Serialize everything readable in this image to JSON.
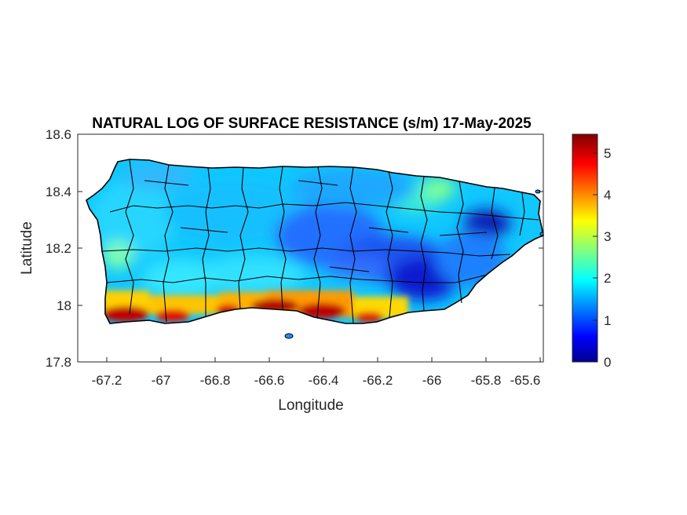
{
  "figure": {
    "title": "NATURAL LOG OF SURFACE RESISTANCE (s/m) 17-May-2025",
    "xlabel": "Longitude",
    "ylabel": "Latitude",
    "xticks": [
      "-67.2",
      "-67",
      "-66.8",
      "-66.6",
      "-66.4",
      "-66.2",
      "-66",
      "-65.8",
      "-65.6"
    ],
    "yticks": [
      "18.6",
      "18.4",
      "18.2",
      "18",
      "17.8"
    ],
    "colorbar_ticks": [
      "5",
      "4",
      "3",
      "2",
      "1",
      "0"
    ]
  },
  "chart_data": {
    "type": "heatmap",
    "region": "Puerto Rico",
    "variable": "natural log of surface resistance",
    "units": "s/m",
    "date": "17-May-2025",
    "xlim": [
      -67.3,
      -65.6
    ],
    "ylim": [
      17.8,
      18.6
    ],
    "xticks": [
      -67.2,
      -67.0,
      -66.8,
      -66.6,
      -66.4,
      -66.2,
      -66.0,
      -65.8,
      -65.6
    ],
    "yticks": [
      17.8,
      18.0,
      18.2,
      18.4,
      18.6
    ],
    "clim": [
      0,
      5.4
    ],
    "colorbar_ticks": [
      0,
      1,
      2,
      3,
      4,
      5
    ],
    "colormap": "jet",
    "typical_value": 2.0,
    "features": [
      {
        "name": "southern coast high resistance",
        "value_range": [
          4,
          5.4
        ]
      },
      {
        "name": "east-central interior low",
        "value_range": [
          0.5,
          1.2
        ]
      },
      {
        "name": "northeast low near -65.8",
        "value_range": [
          0.3,
          0.9
        ]
      },
      {
        "name": "western interior",
        "value_range": [
          2,
          2.6
        ]
      }
    ]
  },
  "colors": {
    "jet_low": "#00008f",
    "jet_mid": "#00ffff",
    "jet_high": "#800000",
    "boundary": "#000000",
    "axes": "#262626"
  }
}
